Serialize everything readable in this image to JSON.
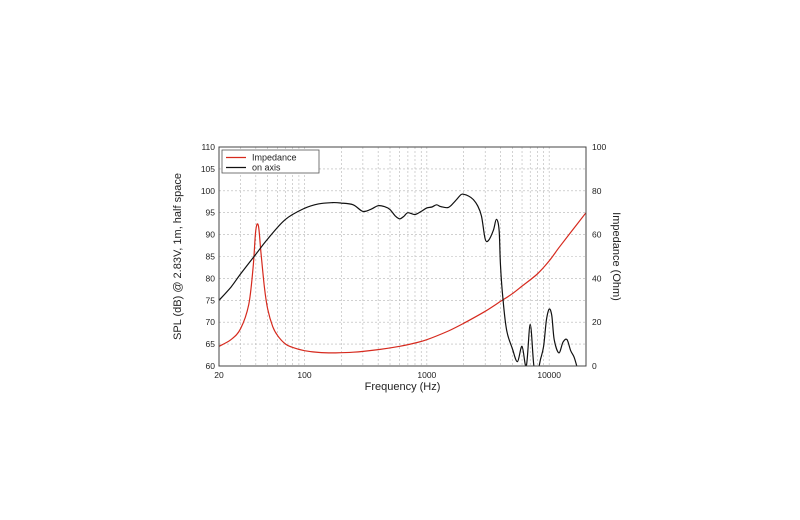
{
  "chart_data": {
    "type": "line",
    "xscale": "log",
    "xlim": [
      20,
      20000
    ],
    "x_ticks": [
      20,
      100,
      1000,
      10000
    ],
    "x_tick_labels": [
      "20",
      "100",
      "1000",
      "10000"
    ],
    "xlabel": "Frequency (Hz)",
    "ylabel_left": "SPL (dB) @ 2.83V, 1m, half space",
    "ylim_left": [
      60,
      110
    ],
    "y_ticks_left": [
      "60",
      "65",
      "70",
      "75",
      "80",
      "85",
      "90",
      "95",
      "100",
      "105",
      "110"
    ],
    "ylabel_right": "Impedance (Ohm)",
    "ylim_right": [
      0,
      100
    ],
    "y_ticks_right": [
      "0",
      "20",
      "40",
      "60",
      "80",
      "100"
    ],
    "grid": true,
    "legend_position": "top-left",
    "series": [
      {
        "name": "Impedance",
        "axis": "right",
        "color": "#d62a1e",
        "x": [
          20,
          25,
          30,
          35,
          38,
          40,
          42,
          44,
          47,
          50,
          55,
          60,
          70,
          80,
          100,
          130,
          170,
          250,
          400,
          600,
          800,
          1000,
          1500,
          2000,
          3000,
          4000,
          5000,
          6000,
          8000,
          10000,
          12000,
          15000,
          20000
        ],
        "y": [
          9,
          12,
          17,
          28,
          45,
          62,
          64,
          52,
          36,
          26,
          18,
          14,
          10,
          8.5,
          7,
          6.2,
          6,
          6.3,
          7.5,
          9,
          10.5,
          12,
          16,
          19.5,
          25,
          29.5,
          33,
          36.5,
          42,
          48,
          54,
          61,
          70
        ]
      },
      {
        "name": "on axis",
        "axis": "left",
        "color": "#111111",
        "x": [
          20,
          25,
          30,
          40,
          50,
          70,
          100,
          130,
          170,
          200,
          250,
          300,
          350,
          400,
          450,
          500,
          550,
          600,
          650,
          700,
          800,
          900,
          1000,
          1100,
          1200,
          1300,
          1500,
          1700,
          1900,
          2000,
          2200,
          2400,
          2600,
          2800,
          3000,
          3200,
          3500,
          3700,
          3900,
          4000,
          4200,
          4500,
          5000,
          5500,
          6000,
          6500,
          7000,
          7500,
          8000,
          8500,
          9000,
          9500,
          10000,
          10500,
          11000,
          12000,
          13000,
          14000,
          15000,
          16000,
          17000
        ],
        "y": [
          75,
          78,
          81,
          85.5,
          89,
          93.5,
          96,
          97,
          97.3,
          97.2,
          96.8,
          95.3,
          95.8,
          96.6,
          96.4,
          95.7,
          94.3,
          93.6,
          94.2,
          95,
          94.6,
          95.3,
          96.1,
          96.3,
          96.8,
          96.4,
          96.2,
          97.6,
          99.1,
          99.2,
          98.8,
          98,
          96.6,
          94.2,
          89,
          88.7,
          91,
          93.5,
          91,
          83,
          75,
          68,
          64,
          61,
          64.5,
          60,
          69.5,
          60,
          58.5,
          61.5,
          64.5,
          70.5,
          73,
          71.5,
          66,
          63,
          65.5,
          66,
          63.5,
          62,
          59.5
        ]
      }
    ]
  }
}
